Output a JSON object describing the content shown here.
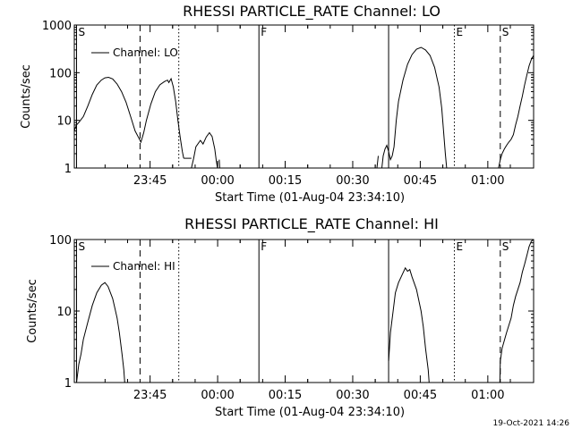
{
  "stamp": "19-Oct-2021 14:26",
  "chart_data": [
    {
      "type": "line",
      "title": "RHESSI PARTICLE_RATE Channel: LO",
      "xlabel": "Start Time (01-Aug-04 23:34:10)",
      "ylabel": "Counts/sec",
      "yscale": "log",
      "ylim": [
        1,
        1000
      ],
      "yticks": [
        {
          "v": 1,
          "t": "1"
        },
        {
          "v": 10,
          "t": "10"
        },
        {
          "v": 100,
          "t": "100"
        },
        {
          "v": 1000,
          "t": "1000"
        }
      ],
      "xlim": [
        -6,
        96
      ],
      "xticks": [
        {
          "v": 10.83,
          "t": "23:45"
        },
        {
          "v": 25.83,
          "t": "00:00"
        },
        {
          "v": 40.83,
          "t": "00:15"
        },
        {
          "v": 55.83,
          "t": "00:30"
        },
        {
          "v": 70.83,
          "t": "00:45"
        },
        {
          "v": 85.83,
          "t": "01:00"
        }
      ],
      "legend": {
        "label": "Channel: LO",
        "position": "top-left"
      },
      "markers": [
        {
          "x": -5.5,
          "style": "solid",
          "label": "S"
        },
        {
          "x": 8.6,
          "style": "dashed",
          "label": ""
        },
        {
          "x": 17.2,
          "style": "dotted",
          "label": ""
        },
        {
          "x": 35.0,
          "style": "solid",
          "label": "F"
        },
        {
          "x": 63.8,
          "style": "solid",
          "label": ""
        },
        {
          "x": 78.4,
          "style": "dotted",
          "label": "E"
        },
        {
          "x": 88.6,
          "style": "dashed",
          "label": "S"
        },
        {
          "x": 96.0,
          "style": "dashdot",
          "label": ""
        }
      ],
      "segments": [
        [
          [
            -6,
            6
          ],
          [
            -5.5,
            8
          ],
          [
            -5,
            9
          ],
          [
            -4,
            12
          ],
          [
            -3,
            20
          ],
          [
            -2,
            35
          ],
          [
            -1,
            55
          ],
          [
            0,
            70
          ],
          [
            0.8,
            78
          ],
          [
            1.6,
            80
          ],
          [
            2.5,
            74
          ],
          [
            3.5,
            58
          ],
          [
            4.5,
            40
          ],
          [
            5.5,
            24
          ],
          [
            6.5,
            12
          ],
          [
            7.5,
            6
          ],
          [
            8.2,
            4.5
          ],
          [
            8.8,
            3.5
          ],
          [
            9.4,
            5.5
          ],
          [
            10,
            10
          ],
          [
            11,
            22
          ],
          [
            12,
            40
          ],
          [
            13,
            56
          ],
          [
            14,
            65
          ],
          [
            14.7,
            70
          ],
          [
            15,
            62
          ],
          [
            15.5,
            75
          ],
          [
            16,
            50
          ],
          [
            16.5,
            25
          ],
          [
            17,
            10
          ],
          [
            17.5,
            4.5
          ],
          [
            18,
            2.2
          ],
          [
            18.3,
            1.6
          ]
        ],
        [
          [
            18.3,
            1.6
          ],
          [
            20,
            1.6
          ]
        ],
        [
          [
            20,
            1
          ],
          [
            20.5,
            1.6
          ],
          [
            21,
            2.8
          ],
          [
            22,
            3.8
          ],
          [
            22.6,
            3.2
          ],
          [
            23.3,
            4.5
          ],
          [
            24,
            5.5
          ],
          [
            24.6,
            4.6
          ],
          [
            25.2,
            2.5
          ],
          [
            25.5,
            1.5
          ],
          [
            25.8,
            1
          ]
        ],
        [
          [
            26.2,
            1.5
          ],
          [
            26.3,
            1
          ]
        ],
        [
          [
            61.2,
            1
          ],
          [
            61.5,
            1.8
          ]
        ],
        [
          [
            62.3,
            1
          ],
          [
            62.6,
            1.8
          ],
          [
            63,
            2.5
          ],
          [
            63.4,
            3
          ],
          [
            63.8,
            2.2
          ],
          [
            64.2,
            1.5
          ],
          [
            64.6,
            1.8
          ],
          [
            65,
            2.8
          ],
          [
            65.5,
            10
          ],
          [
            66,
            25
          ],
          [
            67,
            70
          ],
          [
            68,
            150
          ],
          [
            69,
            240
          ],
          [
            70,
            310
          ],
          [
            71,
            340
          ],
          [
            72,
            300
          ],
          [
            73,
            230
          ],
          [
            74,
            130
          ],
          [
            75,
            50
          ],
          [
            75.6,
            18
          ],
          [
            76,
            6
          ],
          [
            76.4,
            2
          ],
          [
            76.7,
            1
          ]
        ],
        [
          [
            88.2,
            1
          ],
          [
            88.6,
            1.5
          ],
          [
            89,
            2
          ],
          [
            89.5,
            2.5
          ],
          [
            90,
            3
          ],
          [
            90.5,
            3.5
          ],
          [
            91,
            4
          ],
          [
            91.5,
            5
          ],
          [
            92,
            8
          ],
          [
            92.5,
            12
          ],
          [
            93,
            20
          ],
          [
            93.5,
            32
          ],
          [
            94,
            55
          ],
          [
            94.5,
            90
          ],
          [
            95,
            140
          ],
          [
            95.5,
            190
          ],
          [
            96,
            230
          ],
          [
            97,
            280
          ],
          [
            98,
            300
          ]
        ]
      ]
    },
    {
      "type": "line",
      "title": "RHESSI PARTICLE_RATE Channel: HI",
      "xlabel": "Start Time (01-Aug-04 23:34:10)",
      "ylabel": "Counts/sec",
      "yscale": "log",
      "ylim": [
        1,
        100
      ],
      "yticks": [
        {
          "v": 1,
          "t": "1"
        },
        {
          "v": 10,
          "t": "10"
        },
        {
          "v": 100,
          "t": "100"
        }
      ],
      "xlim": [
        -6,
        96
      ],
      "xticks": [
        {
          "v": 10.83,
          "t": "23:45"
        },
        {
          "v": 25.83,
          "t": "00:00"
        },
        {
          "v": 40.83,
          "t": "00:15"
        },
        {
          "v": 55.83,
          "t": "00:30"
        },
        {
          "v": 70.83,
          "t": "00:45"
        },
        {
          "v": 85.83,
          "t": "01:00"
        }
      ],
      "legend": {
        "label": "Channel: HI",
        "position": "top-left"
      },
      "markers": [
        {
          "x": -5.5,
          "style": "solid",
          "label": "S"
        },
        {
          "x": 8.6,
          "style": "dashed",
          "label": ""
        },
        {
          "x": 17.2,
          "style": "dotted",
          "label": ""
        },
        {
          "x": 35.0,
          "style": "solid",
          "label": "F"
        },
        {
          "x": 63.8,
          "style": "solid",
          "label": ""
        },
        {
          "x": 78.4,
          "style": "dotted",
          "label": "E"
        },
        {
          "x": 88.6,
          "style": "dashed",
          "label": "S"
        },
        {
          "x": 96.0,
          "style": "dashdot",
          "label": ""
        }
      ],
      "segments": [
        [
          [
            -5.5,
            1
          ],
          [
            -5,
            1.8
          ],
          [
            -4.5,
            2.5
          ],
          [
            -4,
            4
          ],
          [
            -3,
            7
          ],
          [
            -2,
            12
          ],
          [
            -1,
            18
          ],
          [
            0,
            23
          ],
          [
            0.8,
            25
          ],
          [
            1.5,
            22
          ],
          [
            2.5,
            15
          ],
          [
            3,
            11
          ],
          [
            3.5,
            8
          ],
          [
            4,
            5
          ],
          [
            4.6,
            2.5
          ],
          [
            5,
            1.5
          ],
          [
            5.2,
            1
          ]
        ],
        [
          [
            63.8,
            2
          ],
          [
            64.2,
            5
          ],
          [
            64.8,
            10
          ],
          [
            65.3,
            18
          ],
          [
            66,
            25
          ],
          [
            66.8,
            32
          ],
          [
            67.5,
            40
          ],
          [
            68,
            36
          ],
          [
            68.5,
            38
          ],
          [
            69,
            30
          ],
          [
            70,
            20
          ],
          [
            71,
            10
          ],
          [
            71.5,
            6
          ],
          [
            72,
            3
          ],
          [
            72.6,
            1.5
          ],
          [
            72.8,
            1
          ]
        ],
        [
          [
            88.5,
            1
          ],
          [
            88.6,
            2
          ],
          [
            89,
            3
          ],
          [
            90,
            5
          ],
          [
            91,
            8
          ],
          [
            91.5,
            12
          ],
          [
            92,
            16
          ],
          [
            93,
            25
          ],
          [
            93.5,
            35
          ],
          [
            94,
            45
          ],
          [
            94.5,
            60
          ],
          [
            95,
            80
          ],
          [
            95.5,
            95
          ],
          [
            96,
            100
          ],
          [
            97,
            100
          ]
        ]
      ]
    }
  ]
}
